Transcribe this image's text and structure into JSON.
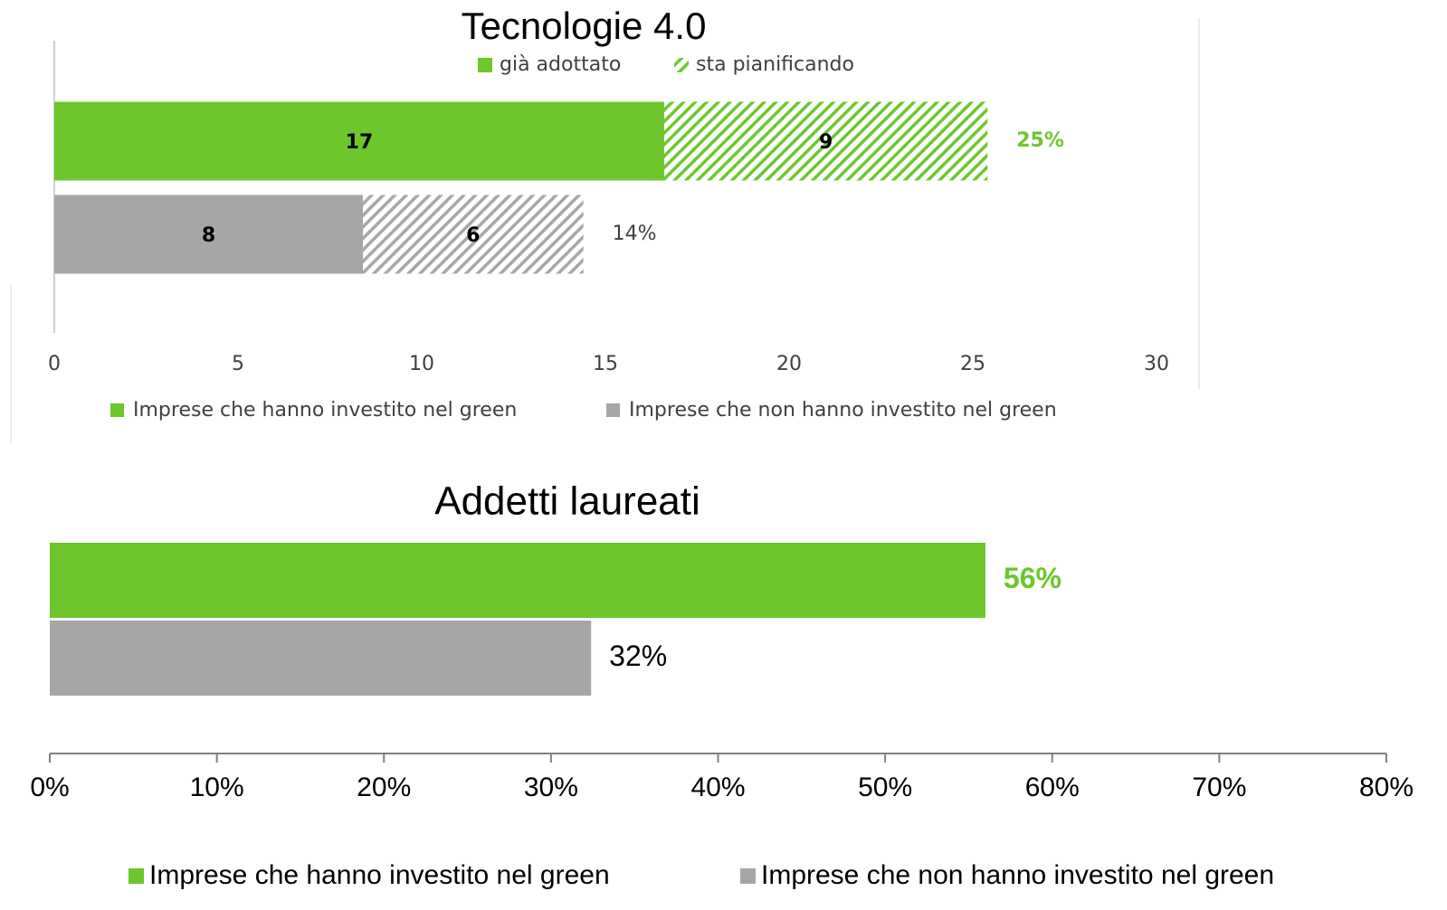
{
  "chart_data": [
    {
      "type": "stacked-bar-horizontal",
      "title": "Tecnologie 4.0",
      "categories": [
        null,
        null
      ],
      "series": [
        {
          "name": "già adottato",
          "pattern": "solid",
          "values": [
            16.6,
            8.4
          ],
          "value_labels": [
            "17",
            "8"
          ]
        },
        {
          "name": "sta pianificando",
          "pattern": "hatch",
          "values": [
            8.8,
            6.0
          ],
          "value_labels": [
            "9",
            "6"
          ]
        }
      ],
      "groups": [
        {
          "name": "Imprese che hanno investito nel green",
          "color": "#6cc62c"
        },
        {
          "name": "Imprese che non hanno investito nel green",
          "color": "#a6a6a6"
        }
      ],
      "total_labels": [
        "25%",
        "14%"
      ],
      "xlim": [
        0,
        30
      ],
      "xticks": [
        0,
        5,
        10,
        15,
        20,
        25,
        30
      ],
      "grid": false
    },
    {
      "type": "bar-horizontal",
      "title": "Addetti laureati",
      "categories": [
        null,
        null
      ],
      "values": [
        56,
        32.4
      ],
      "value_labels": [
        "56%",
        "32%"
      ],
      "colors": [
        "#6cc62c",
        "#a6a6a6"
      ],
      "legend": [
        "Imprese che hanno investito nel green",
        "Imprese che non hanno investito nel green"
      ],
      "xlim": [
        0,
        80
      ],
      "xticks": [
        {
          "value": 0,
          "label": "0%"
        },
        {
          "value": 10,
          "label": "10%"
        },
        {
          "value": 20,
          "label": "20%"
        },
        {
          "value": 30,
          "label": "30%"
        },
        {
          "value": 40,
          "label": "40%"
        },
        {
          "value": 50,
          "label": "50%"
        },
        {
          "value": 60,
          "label": "60%"
        },
        {
          "value": 70,
          "label": "70%"
        },
        {
          "value": 80,
          "label": "80%"
        }
      ],
      "grid": false
    }
  ]
}
